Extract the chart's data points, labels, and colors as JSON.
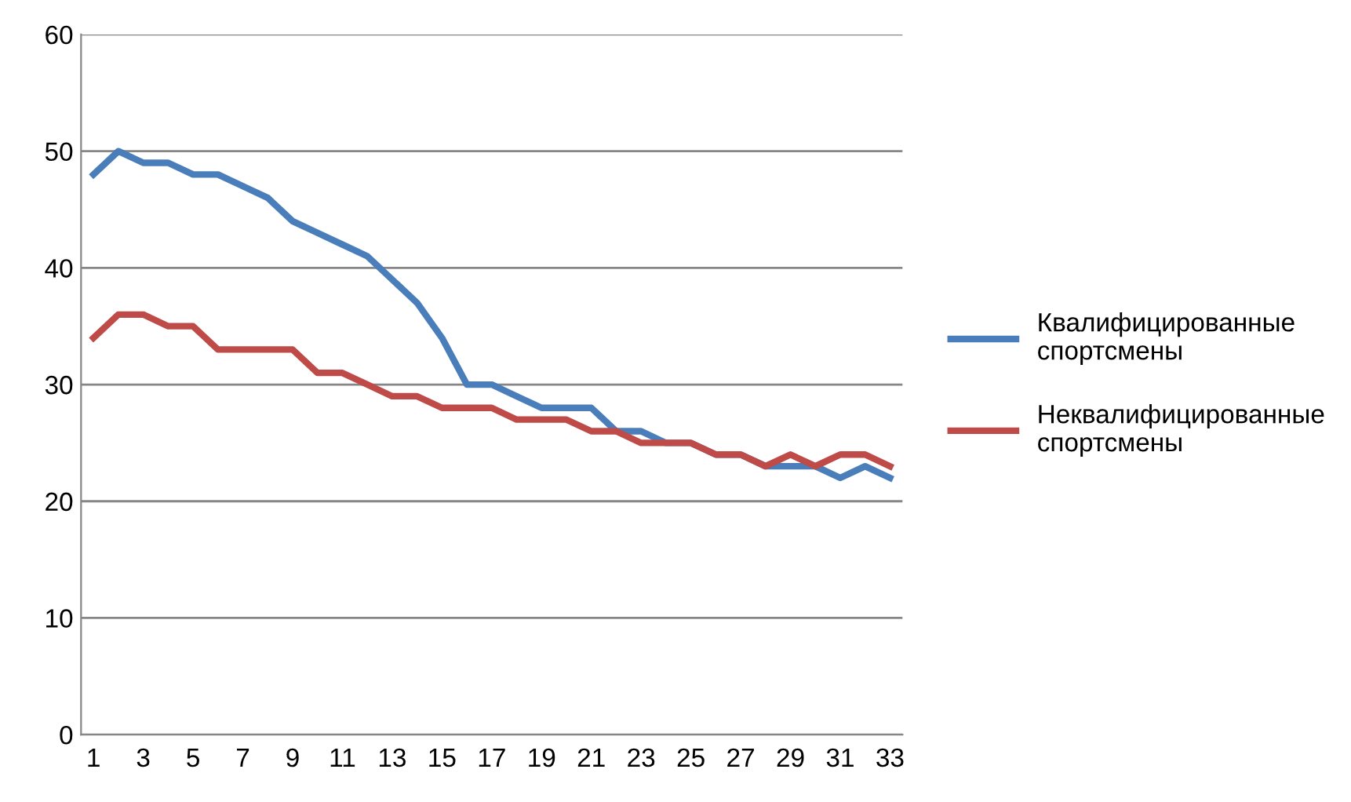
{
  "chart_data": {
    "type": "line",
    "categories": [
      "1",
      null,
      "3",
      null,
      "5",
      null,
      "7",
      null,
      "9",
      null,
      "11",
      null,
      "13",
      null,
      "15",
      null,
      "17",
      null,
      "19",
      null,
      "21",
      null,
      "23",
      null,
      "25",
      null,
      "27",
      null,
      "29",
      null,
      "31",
      null,
      "33"
    ],
    "series": [
      {
        "name": "Квалифицированные спортсмены",
        "color": "#4a7ebb",
        "values": [
          48,
          50,
          49,
          49,
          48,
          48,
          47,
          46,
          44,
          43,
          42,
          41,
          39,
          37,
          34,
          30,
          30,
          29,
          28,
          28,
          28,
          26,
          26,
          25,
          25,
          24,
          24,
          23,
          23,
          23,
          22,
          23,
          22
        ]
      },
      {
        "name": "Неквалифицированные спортсмены",
        "color": "#be4b48",
        "values": [
          34,
          36,
          36,
          35,
          35,
          33,
          33,
          33,
          33,
          31,
          31,
          30,
          29,
          29,
          28,
          28,
          28,
          27,
          27,
          27,
          26,
          26,
          25,
          25,
          25,
          24,
          24,
          23,
          24,
          23,
          24,
          24,
          23
        ]
      }
    ],
    "ylim": [
      0,
      60
    ],
    "yticks": [
      0,
      10,
      20,
      30,
      40,
      50,
      60
    ],
    "grid": "y",
    "legend": "right"
  }
}
